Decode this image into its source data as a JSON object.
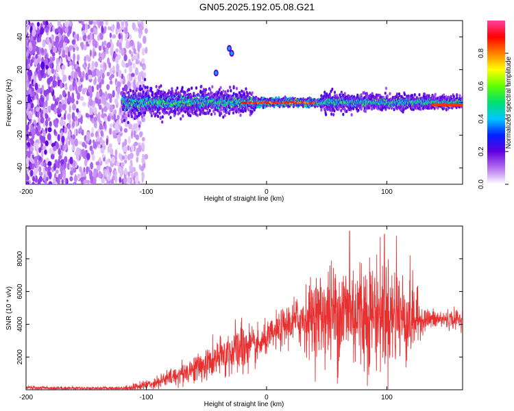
{
  "title": "GN05.2025.192.05.08.G21",
  "chart_data": [
    {
      "type": "heatmap",
      "xlabel": "Height of straight line (km)",
      "ylabel": "Frequency (Hz)",
      "xlim": [
        -200,
        163
      ],
      "ylim": [
        -50,
        50
      ],
      "xticks": [
        -200,
        -100,
        0,
        100
      ],
      "yticks": [
        -40,
        -20,
        0,
        20,
        40
      ],
      "colorbar": {
        "label": "Normalized spectral amplitude",
        "range": [
          0,
          1
        ],
        "ticks": [
          "0.0",
          "0.2",
          "0.4",
          "0.6",
          "0.8"
        ],
        "colors": [
          "#ffffff",
          "#b46ef0",
          "#6000e0",
          "#0020ff",
          "#00c8ff",
          "#00e070",
          "#60ff00",
          "#ffff00",
          "#ff8000",
          "#ff0000",
          "#ff40a0"
        ]
      },
      "features": [
        {
          "name": "noise cloud",
          "x_range": [
            -200,
            -100
          ],
          "y_range": [
            -50,
            50
          ]
        },
        {
          "name": "signal band",
          "x_range": [
            -120,
            163
          ],
          "center_hz": 0,
          "halfwidth_hz": [
            8,
            3
          ]
        },
        {
          "name": "spot",
          "x": -42,
          "y": 18
        },
        {
          "name": "spot",
          "x": -29,
          "y": 30
        },
        {
          "name": "spot",
          "x": -31,
          "y": 33
        }
      ]
    },
    {
      "type": "line",
      "xlabel": "Height of straight line (km)",
      "ylabel": "SNR (10 * v/v)",
      "xlim": [
        -200,
        163
      ],
      "ylim": [
        0,
        10000
      ],
      "xticks": [
        -200,
        -100,
        0,
        100
      ],
      "yticks": [
        2000,
        4000,
        6000,
        8000
      ],
      "series": [
        {
          "color": "#e83030",
          "x": [
            -200,
            -180,
            -160,
            -140,
            -120,
            -110,
            -100,
            -90,
            -80,
            -70,
            -60,
            -50,
            -40,
            -30,
            -20,
            -15,
            -10,
            0,
            10,
            20,
            30,
            40,
            50,
            60,
            70,
            80,
            90,
            100,
            110,
            120,
            130,
            140,
            150,
            163
          ],
          "mean": [
            130,
            110,
            100,
            90,
            100,
            170,
            300,
            500,
            750,
            1000,
            1300,
            1550,
            1900,
            2300,
            2500,
            2700,
            2500,
            3100,
            3600,
            4100,
            4300,
            4500,
            4600,
            4700,
            4800,
            4700,
            4700,
            4600,
            4500,
            4400,
            4300,
            4300,
            4300,
            4300
          ],
          "spread": [
            100,
            90,
            80,
            80,
            90,
            180,
            250,
            350,
            450,
            600,
            700,
            800,
            1000,
            1200,
            1500,
            1200,
            900,
            800,
            900,
            1100,
            1500,
            2000,
            2400,
            2800,
            3000,
            3000,
            2800,
            2700,
            2500,
            2300,
            600,
            500,
            500,
            500
          ],
          "peaks": [
            {
              "x": -21,
              "y": 4100
            },
            {
              "x": 69,
              "y": 9700
            },
            {
              "x": 98,
              "y": 9500
            },
            {
              "x": 108,
              "y": 9400
            }
          ]
        }
      ]
    }
  ]
}
